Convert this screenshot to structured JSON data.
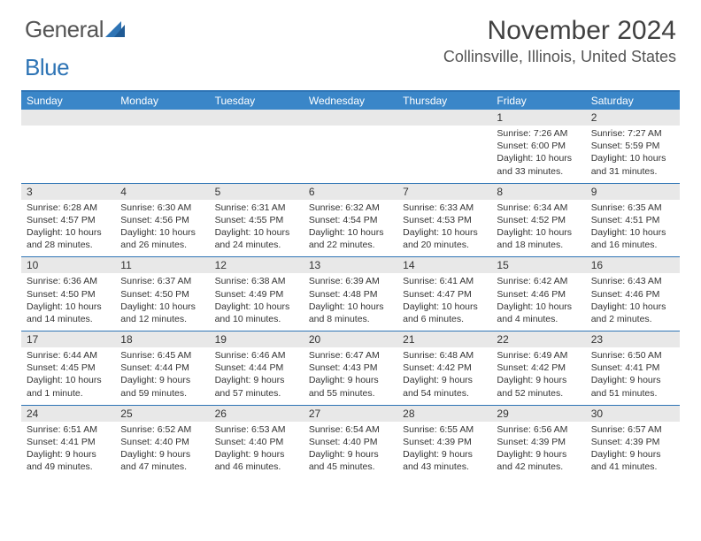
{
  "logo": {
    "text_gray": "General",
    "text_blue": "Blue"
  },
  "title": "November 2024",
  "location": "Collinsville, Illinois, United States",
  "colors": {
    "header_bg": "#3a86c8",
    "border": "#2e74b5",
    "daynum_bg": "#e8e8e8",
    "text": "#333333"
  },
  "weekdays": [
    "Sunday",
    "Monday",
    "Tuesday",
    "Wednesday",
    "Thursday",
    "Friday",
    "Saturday"
  ],
  "weeks": [
    [
      {
        "n": "",
        "sr": "",
        "ss": "",
        "dl": ""
      },
      {
        "n": "",
        "sr": "",
        "ss": "",
        "dl": ""
      },
      {
        "n": "",
        "sr": "",
        "ss": "",
        "dl": ""
      },
      {
        "n": "",
        "sr": "",
        "ss": "",
        "dl": ""
      },
      {
        "n": "",
        "sr": "",
        "ss": "",
        "dl": ""
      },
      {
        "n": "1",
        "sr": "Sunrise: 7:26 AM",
        "ss": "Sunset: 6:00 PM",
        "dl": "Daylight: 10 hours and 33 minutes."
      },
      {
        "n": "2",
        "sr": "Sunrise: 7:27 AM",
        "ss": "Sunset: 5:59 PM",
        "dl": "Daylight: 10 hours and 31 minutes."
      }
    ],
    [
      {
        "n": "3",
        "sr": "Sunrise: 6:28 AM",
        "ss": "Sunset: 4:57 PM",
        "dl": "Daylight: 10 hours and 28 minutes."
      },
      {
        "n": "4",
        "sr": "Sunrise: 6:30 AM",
        "ss": "Sunset: 4:56 PM",
        "dl": "Daylight: 10 hours and 26 minutes."
      },
      {
        "n": "5",
        "sr": "Sunrise: 6:31 AM",
        "ss": "Sunset: 4:55 PM",
        "dl": "Daylight: 10 hours and 24 minutes."
      },
      {
        "n": "6",
        "sr": "Sunrise: 6:32 AM",
        "ss": "Sunset: 4:54 PM",
        "dl": "Daylight: 10 hours and 22 minutes."
      },
      {
        "n": "7",
        "sr": "Sunrise: 6:33 AM",
        "ss": "Sunset: 4:53 PM",
        "dl": "Daylight: 10 hours and 20 minutes."
      },
      {
        "n": "8",
        "sr": "Sunrise: 6:34 AM",
        "ss": "Sunset: 4:52 PM",
        "dl": "Daylight: 10 hours and 18 minutes."
      },
      {
        "n": "9",
        "sr": "Sunrise: 6:35 AM",
        "ss": "Sunset: 4:51 PM",
        "dl": "Daylight: 10 hours and 16 minutes."
      }
    ],
    [
      {
        "n": "10",
        "sr": "Sunrise: 6:36 AM",
        "ss": "Sunset: 4:50 PM",
        "dl": "Daylight: 10 hours and 14 minutes."
      },
      {
        "n": "11",
        "sr": "Sunrise: 6:37 AM",
        "ss": "Sunset: 4:50 PM",
        "dl": "Daylight: 10 hours and 12 minutes."
      },
      {
        "n": "12",
        "sr": "Sunrise: 6:38 AM",
        "ss": "Sunset: 4:49 PM",
        "dl": "Daylight: 10 hours and 10 minutes."
      },
      {
        "n": "13",
        "sr": "Sunrise: 6:39 AM",
        "ss": "Sunset: 4:48 PM",
        "dl": "Daylight: 10 hours and 8 minutes."
      },
      {
        "n": "14",
        "sr": "Sunrise: 6:41 AM",
        "ss": "Sunset: 4:47 PM",
        "dl": "Daylight: 10 hours and 6 minutes."
      },
      {
        "n": "15",
        "sr": "Sunrise: 6:42 AM",
        "ss": "Sunset: 4:46 PM",
        "dl": "Daylight: 10 hours and 4 minutes."
      },
      {
        "n": "16",
        "sr": "Sunrise: 6:43 AM",
        "ss": "Sunset: 4:46 PM",
        "dl": "Daylight: 10 hours and 2 minutes."
      }
    ],
    [
      {
        "n": "17",
        "sr": "Sunrise: 6:44 AM",
        "ss": "Sunset: 4:45 PM",
        "dl": "Daylight: 10 hours and 1 minute."
      },
      {
        "n": "18",
        "sr": "Sunrise: 6:45 AM",
        "ss": "Sunset: 4:44 PM",
        "dl": "Daylight: 9 hours and 59 minutes."
      },
      {
        "n": "19",
        "sr": "Sunrise: 6:46 AM",
        "ss": "Sunset: 4:44 PM",
        "dl": "Daylight: 9 hours and 57 minutes."
      },
      {
        "n": "20",
        "sr": "Sunrise: 6:47 AM",
        "ss": "Sunset: 4:43 PM",
        "dl": "Daylight: 9 hours and 55 minutes."
      },
      {
        "n": "21",
        "sr": "Sunrise: 6:48 AM",
        "ss": "Sunset: 4:42 PM",
        "dl": "Daylight: 9 hours and 54 minutes."
      },
      {
        "n": "22",
        "sr": "Sunrise: 6:49 AM",
        "ss": "Sunset: 4:42 PM",
        "dl": "Daylight: 9 hours and 52 minutes."
      },
      {
        "n": "23",
        "sr": "Sunrise: 6:50 AM",
        "ss": "Sunset: 4:41 PM",
        "dl": "Daylight: 9 hours and 51 minutes."
      }
    ],
    [
      {
        "n": "24",
        "sr": "Sunrise: 6:51 AM",
        "ss": "Sunset: 4:41 PM",
        "dl": "Daylight: 9 hours and 49 minutes."
      },
      {
        "n": "25",
        "sr": "Sunrise: 6:52 AM",
        "ss": "Sunset: 4:40 PM",
        "dl": "Daylight: 9 hours and 47 minutes."
      },
      {
        "n": "26",
        "sr": "Sunrise: 6:53 AM",
        "ss": "Sunset: 4:40 PM",
        "dl": "Daylight: 9 hours and 46 minutes."
      },
      {
        "n": "27",
        "sr": "Sunrise: 6:54 AM",
        "ss": "Sunset: 4:40 PM",
        "dl": "Daylight: 9 hours and 45 minutes."
      },
      {
        "n": "28",
        "sr": "Sunrise: 6:55 AM",
        "ss": "Sunset: 4:39 PM",
        "dl": "Daylight: 9 hours and 43 minutes."
      },
      {
        "n": "29",
        "sr": "Sunrise: 6:56 AM",
        "ss": "Sunset: 4:39 PM",
        "dl": "Daylight: 9 hours and 42 minutes."
      },
      {
        "n": "30",
        "sr": "Sunrise: 6:57 AM",
        "ss": "Sunset: 4:39 PM",
        "dl": "Daylight: 9 hours and 41 minutes."
      }
    ]
  ]
}
